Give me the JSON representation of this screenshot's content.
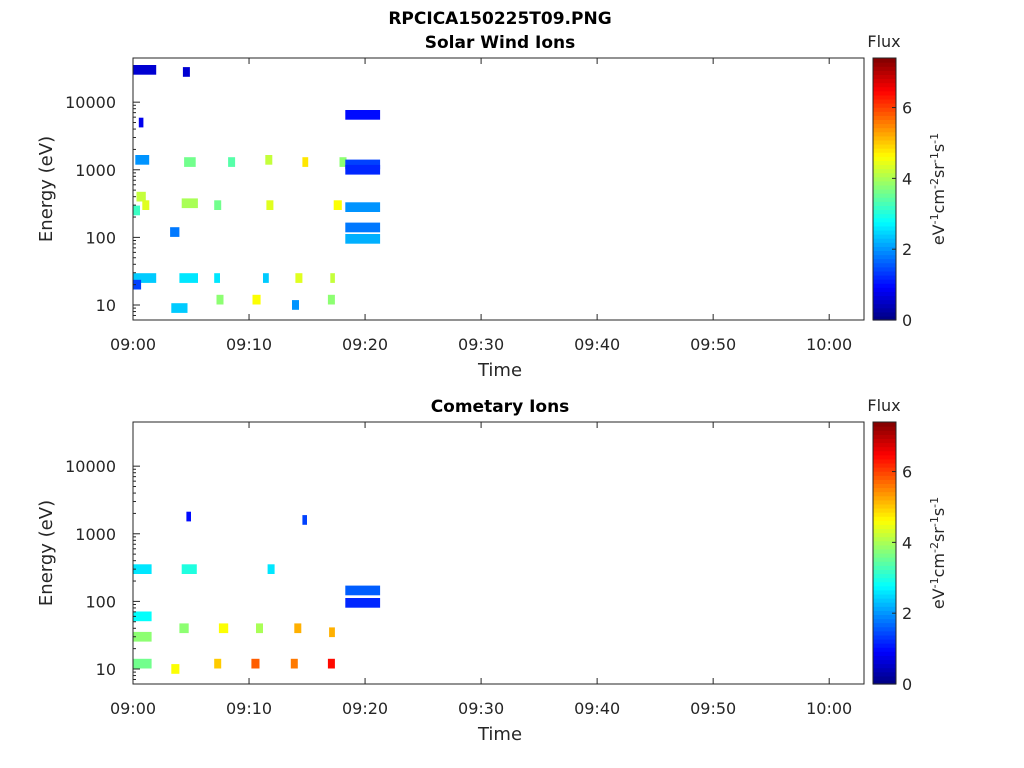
{
  "figure": {
    "title": "RPCICA150225T09.PNG"
  },
  "colormap": "jet",
  "chart_data": [
    {
      "type": "heatmap",
      "title": "Solar Wind Ions",
      "xlabel": "Time",
      "ylabel": "Energy (eV)",
      "x_ticks": [
        "09:00",
        "09:10",
        "09:20",
        "09:30",
        "09:40",
        "09:50",
        "10:00"
      ],
      "x_range": [
        "09:00",
        "10:03"
      ],
      "y_scale": "log",
      "y_ticks": [
        "10",
        "100",
        "1000",
        "10000"
      ],
      "y_range": [
        6,
        45000
      ],
      "colorbar": {
        "title": "Flux",
        "unit_label": "eV-1cm-2sr-1s-1",
        "ticks": [
          "0",
          "2",
          "4",
          "6"
        ],
        "range": [
          0,
          7.4
        ]
      },
      "cells": [
        {
          "t": 0.0,
          "dt": 2.0,
          "e": 25,
          "v": 2.4
        },
        {
          "t": 0.0,
          "dt": 0.7,
          "e": 20,
          "v": 1.4
        },
        {
          "t": 0.3,
          "dt": 0.8,
          "e": 400,
          "v": 4.2
        },
        {
          "t": 0.8,
          "dt": 0.6,
          "e": 300,
          "v": 4.4
        },
        {
          "t": 0.0,
          "dt": 0.6,
          "e": 250,
          "v": 3.2
        },
        {
          "t": 0.2,
          "dt": 1.2,
          "e": 1400,
          "v": 2.0
        },
        {
          "t": 0.5,
          "dt": 0.4,
          "e": 5000,
          "v": 0.8
        },
        {
          "t": 0.0,
          "dt": 2.0,
          "e": 30000,
          "v": 0.6
        },
        {
          "t": 3.3,
          "dt": 1.4,
          "e": 9,
          "v": 2.4
        },
        {
          "t": 4.0,
          "dt": 1.6,
          "e": 25,
          "v": 2.6
        },
        {
          "t": 4.2,
          "dt": 1.4,
          "e": 320,
          "v": 4.0
        },
        {
          "t": 4.4,
          "dt": 1.0,
          "e": 1300,
          "v": 3.6
        },
        {
          "t": 4.3,
          "dt": 0.6,
          "e": 28000,
          "v": 0.6
        },
        {
          "t": 3.2,
          "dt": 0.8,
          "e": 120,
          "v": 1.8
        },
        {
          "t": 7.2,
          "dt": 0.6,
          "e": 12,
          "v": 3.8
        },
        {
          "t": 7.0,
          "dt": 0.5,
          "e": 25,
          "v": 2.6
        },
        {
          "t": 8.2,
          "dt": 0.6,
          "e": 1300,
          "v": 3.4
        },
        {
          "t": 7.0,
          "dt": 0.6,
          "e": 300,
          "v": 3.6
        },
        {
          "t": 10.3,
          "dt": 0.7,
          "e": 12,
          "v": 4.6
        },
        {
          "t": 11.2,
          "dt": 0.5,
          "e": 25,
          "v": 2.4
        },
        {
          "t": 11.4,
          "dt": 0.6,
          "e": 1400,
          "v": 4.2
        },
        {
          "t": 11.5,
          "dt": 0.6,
          "e": 300,
          "v": 4.4
        },
        {
          "t": 13.7,
          "dt": 0.6,
          "e": 10,
          "v": 2.0
        },
        {
          "t": 14.0,
          "dt": 0.6,
          "e": 25,
          "v": 4.4
        },
        {
          "t": 14.6,
          "dt": 0.5,
          "e": 1300,
          "v": 4.8
        },
        {
          "t": 16.8,
          "dt": 0.6,
          "e": 12,
          "v": 3.8
        },
        {
          "t": 17.0,
          "dt": 0.4,
          "e": 25,
          "v": 4.2
        },
        {
          "t": 17.3,
          "dt": 0.7,
          "e": 300,
          "v": 4.6
        },
        {
          "t": 17.8,
          "dt": 0.6,
          "e": 1300,
          "v": 3.8
        },
        {
          "t": 18.3,
          "dt": 3.0,
          "e": 1200,
          "v": 1.4
        },
        {
          "t": 18.3,
          "dt": 3.0,
          "e": 1000,
          "v": 1.2
        },
        {
          "t": 18.3,
          "dt": 3.0,
          "e": 6500,
          "v": 1.0
        },
        {
          "t": 18.3,
          "dt": 3.0,
          "e": 280,
          "v": 2.0
        },
        {
          "t": 18.3,
          "dt": 3.0,
          "e": 140,
          "v": 1.8
        },
        {
          "t": 18.3,
          "dt": 3.0,
          "e": 95,
          "v": 2.2
        }
      ]
    },
    {
      "type": "heatmap",
      "title": "Cometary Ions",
      "xlabel": "Time",
      "ylabel": "Energy (eV)",
      "x_ticks": [
        "09:00",
        "09:10",
        "09:20",
        "09:30",
        "09:40",
        "09:50",
        "10:00"
      ],
      "x_range": [
        "09:00",
        "10:03"
      ],
      "y_scale": "log",
      "y_ticks": [
        "10",
        "100",
        "1000",
        "10000"
      ],
      "y_range": [
        6,
        45000
      ],
      "colorbar": {
        "title": "Flux",
        "unit_label": "eV-1cm-2sr-1s-1",
        "ticks": [
          "0",
          "2",
          "4",
          "6"
        ],
        "range": [
          0,
          7.4
        ]
      },
      "cells": [
        {
          "t": 0.0,
          "dt": 1.6,
          "e": 12,
          "v": 3.6
        },
        {
          "t": 0.0,
          "dt": 1.6,
          "e": 30,
          "v": 3.8
        },
        {
          "t": 0.0,
          "dt": 1.6,
          "e": 60,
          "v": 2.8
        },
        {
          "t": 0.0,
          "dt": 1.6,
          "e": 300,
          "v": 2.6
        },
        {
          "t": 3.3,
          "dt": 0.7,
          "e": 10,
          "v": 4.6
        },
        {
          "t": 4.0,
          "dt": 0.8,
          "e": 40,
          "v": 3.8
        },
        {
          "t": 4.2,
          "dt": 1.3,
          "e": 300,
          "v": 3.0
        },
        {
          "t": 4.6,
          "dt": 0.4,
          "e": 1800,
          "v": 1.0
        },
        {
          "t": 7.0,
          "dt": 0.6,
          "e": 12,
          "v": 5.0
        },
        {
          "t": 7.4,
          "dt": 0.8,
          "e": 40,
          "v": 4.6
        },
        {
          "t": 10.2,
          "dt": 0.7,
          "e": 12,
          "v": 5.8
        },
        {
          "t": 10.6,
          "dt": 0.6,
          "e": 40,
          "v": 4.0
        },
        {
          "t": 13.6,
          "dt": 0.6,
          "e": 12,
          "v": 5.6
        },
        {
          "t": 13.9,
          "dt": 0.6,
          "e": 40,
          "v": 5.2
        },
        {
          "t": 16.8,
          "dt": 0.6,
          "e": 12,
          "v": 6.4
        },
        {
          "t": 16.9,
          "dt": 0.5,
          "e": 35,
          "v": 5.2
        },
        {
          "t": 18.3,
          "dt": 3.0,
          "e": 145,
          "v": 1.6
        },
        {
          "t": 18.3,
          "dt": 3.0,
          "e": 95,
          "v": 1.2
        },
        {
          "t": 11.6,
          "dt": 0.6,
          "e": 300,
          "v": 2.6
        },
        {
          "t": 14.6,
          "dt": 0.4,
          "e": 1600,
          "v": 1.4
        }
      ]
    }
  ]
}
